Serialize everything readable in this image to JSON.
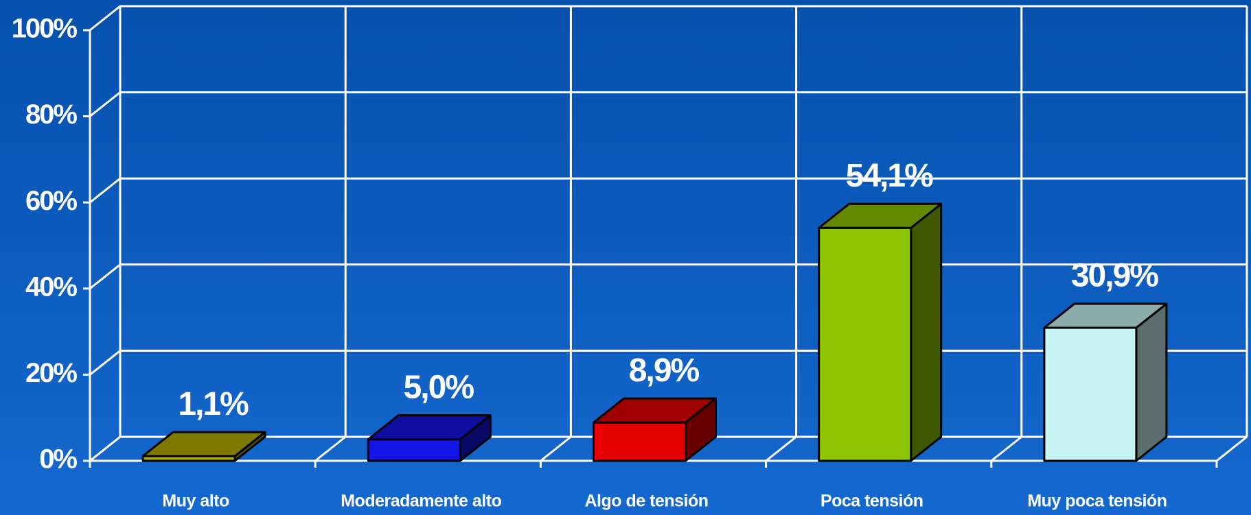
{
  "chart_data": {
    "type": "bar3d",
    "categories": [
      "Muy alto",
      "Moderadamente alto",
      "Algo de tensión",
      "Poca tensión",
      "Muy poca tensión"
    ],
    "values": [
      1.1,
      5.0,
      8.9,
      54.1,
      30.9
    ],
    "value_labels": [
      "1,1%",
      "5,0%",
      "8,9%",
      "54,1%",
      "30,9%"
    ],
    "colors": [
      "#b5ad00",
      "#1414e6",
      "#e60000",
      "#8cc400",
      "#c8f4f4"
    ],
    "ylim": [
      0,
      100
    ],
    "yticks": [
      {
        "value": 0,
        "label": "0%"
      },
      {
        "value": 20,
        "label": "20%"
      },
      {
        "value": 40,
        "label": "40%"
      },
      {
        "value": 60,
        "label": "60%"
      },
      {
        "value": 80,
        "label": "80%"
      },
      {
        "value": 100,
        "label": "100%"
      }
    ],
    "grid": true
  }
}
